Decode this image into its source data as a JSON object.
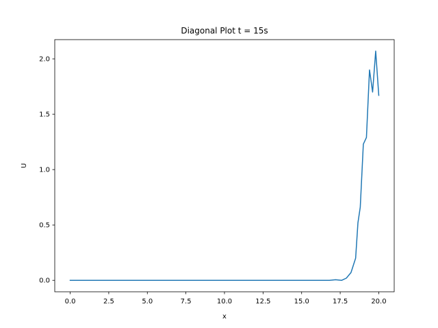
{
  "chart_data": {
    "type": "line",
    "title": "Diagonal Plot t = 15s",
    "xlabel": "x",
    "ylabel": "U",
    "xlim": [
      -1.0,
      21.0
    ],
    "ylim": [
      -0.1035,
      2.1735
    ],
    "grid": false,
    "x_ticks": [
      0.0,
      2.5,
      5.0,
      7.5,
      10.0,
      12.5,
      15.0,
      17.5,
      20.0
    ],
    "x_tick_labels": [
      "0.0",
      "2.5",
      "5.0",
      "7.5",
      "10.0",
      "12.5",
      "15.0",
      "17.5",
      "20.0"
    ],
    "y_ticks": [
      0.0,
      0.5,
      1.0,
      1.5,
      2.0
    ],
    "y_tick_labels": [
      "0.0",
      "0.5",
      "1.0",
      "1.5",
      "2.0"
    ],
    "colors": {
      "line": "#1f77b4",
      "axes": "#000000"
    },
    "series": [
      {
        "x": [
          0.0,
          1.0,
          2.0,
          3.0,
          4.0,
          5.0,
          6.0,
          7.0,
          8.0,
          9.0,
          10.0,
          11.0,
          12.0,
          13.0,
          14.0,
          15.0,
          16.0,
          16.8,
          17.2,
          17.6,
          17.9,
          18.2,
          18.5,
          18.65,
          18.8,
          19.0,
          19.2,
          19.4,
          19.6,
          19.8,
          20.0
        ],
        "y": [
          0.0,
          0.0,
          0.0,
          0.0,
          0.0,
          0.0,
          0.0,
          0.0,
          0.0,
          0.0,
          0.0,
          0.0,
          0.0,
          0.0,
          0.0,
          0.0,
          0.0,
          0.0,
          0.005,
          0.0,
          0.02,
          0.07,
          0.2,
          0.52,
          0.66,
          1.23,
          1.29,
          1.9,
          1.7,
          2.07,
          1.67
        ]
      }
    ]
  }
}
